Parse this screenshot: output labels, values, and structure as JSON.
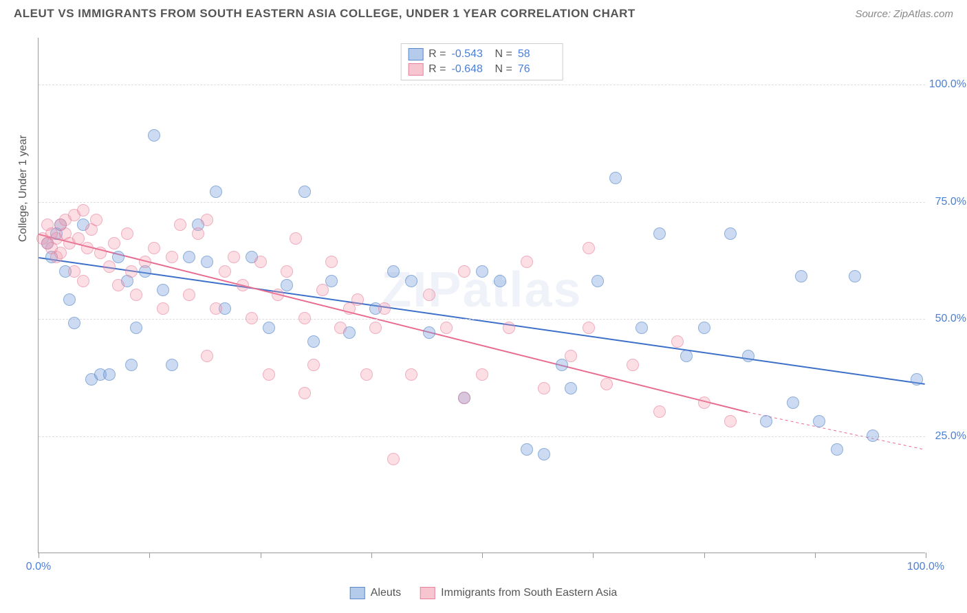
{
  "title": "ALEUT VS IMMIGRANTS FROM SOUTH EASTERN ASIA COLLEGE, UNDER 1 YEAR CORRELATION CHART",
  "source": "Source: ZipAtlas.com",
  "ylabel": "College, Under 1 year",
  "watermark": "ZIPatlas",
  "chart": {
    "type": "scatter",
    "xlim": [
      0,
      100
    ],
    "ylim": [
      0,
      110
    ],
    "yticks": [
      25,
      50,
      75,
      100
    ],
    "ytick_labels": [
      "25.0%",
      "50.0%",
      "75.0%",
      "100.0%"
    ],
    "xtick_positions": [
      0,
      12.5,
      25,
      37.5,
      50,
      62.5,
      75,
      87.5,
      100
    ],
    "xtick_labels": {
      "0": "0.0%",
      "100": "100.0%"
    },
    "background_color": "#ffffff",
    "grid_color": "#dddddd",
    "series": [
      {
        "name": "Aleuts",
        "color_fill": "rgba(120,160,220,0.52)",
        "color_border": "rgba(80,130,200,0.85)",
        "color_hex": "#7aa6dc",
        "r": -0.543,
        "n": 58,
        "marker_size": 18,
        "trend": {
          "x1": 0,
          "y1": 63,
          "x2": 100,
          "y2": 36,
          "color": "#3b6fc9",
          "width": 2
        },
        "points": [
          [
            1,
            66
          ],
          [
            1.5,
            63
          ],
          [
            2,
            68
          ],
          [
            2.5,
            70
          ],
          [
            3,
            60
          ],
          [
            3.5,
            54
          ],
          [
            4,
            49
          ],
          [
            5,
            70
          ],
          [
            6,
            37
          ],
          [
            7,
            38
          ],
          [
            8,
            38
          ],
          [
            9,
            63
          ],
          [
            10,
            58
          ],
          [
            10.5,
            40
          ],
          [
            11,
            48
          ],
          [
            12,
            60
          ],
          [
            13,
            89
          ],
          [
            14,
            56
          ],
          [
            15,
            40
          ],
          [
            17,
            63
          ],
          [
            18,
            70
          ],
          [
            19,
            62
          ],
          [
            20,
            77
          ],
          [
            21,
            52
          ],
          [
            24,
            63
          ],
          [
            26,
            48
          ],
          [
            28,
            57
          ],
          [
            30,
            77
          ],
          [
            31,
            45
          ],
          [
            33,
            58
          ],
          [
            35,
            47
          ],
          [
            38,
            52
          ],
          [
            40,
            60
          ],
          [
            42,
            58
          ],
          [
            44,
            47
          ],
          [
            48,
            33
          ],
          [
            50,
            60
          ],
          [
            52,
            58
          ],
          [
            55,
            22
          ],
          [
            57,
            21
          ],
          [
            59,
            40
          ],
          [
            60,
            35
          ],
          [
            63,
            58
          ],
          [
            65,
            80
          ],
          [
            68,
            48
          ],
          [
            70,
            68
          ],
          [
            73,
            42
          ],
          [
            75,
            48
          ],
          [
            78,
            68
          ],
          [
            80,
            42
          ],
          [
            82,
            28
          ],
          [
            85,
            32
          ],
          [
            86,
            59
          ],
          [
            88,
            28
          ],
          [
            90,
            22
          ],
          [
            92,
            59
          ],
          [
            94,
            25
          ],
          [
            99,
            37
          ]
        ]
      },
      {
        "name": "Immigrants from South Eastern Asia",
        "color_fill": "rgba(240,150,170,0.42)",
        "color_border": "rgba(230,120,150,0.75)",
        "color_hex": "#f096ab",
        "r": -0.648,
        "n": 76,
        "marker_size": 18,
        "trend": {
          "x1": 0,
          "y1": 68,
          "x2": 80,
          "y2": 30,
          "color": "#e86a8f",
          "width": 2,
          "dash_extend_to": 100,
          "dash_y_end": 22
        },
        "points": [
          [
            0.5,
            67
          ],
          [
            1,
            70
          ],
          [
            1,
            66
          ],
          [
            1.5,
            65
          ],
          [
            1.5,
            68
          ],
          [
            2,
            67
          ],
          [
            2,
            63
          ],
          [
            2.5,
            70
          ],
          [
            2.5,
            64
          ],
          [
            3,
            68
          ],
          [
            3,
            71
          ],
          [
            3.5,
            66
          ],
          [
            4,
            72
          ],
          [
            4,
            60
          ],
          [
            4.5,
            67
          ],
          [
            5,
            73
          ],
          [
            5,
            58
          ],
          [
            5.5,
            65
          ],
          [
            6,
            69
          ],
          [
            6.5,
            71
          ],
          [
            7,
            64
          ],
          [
            8,
            61
          ],
          [
            8.5,
            66
          ],
          [
            9,
            57
          ],
          [
            10,
            68
          ],
          [
            10.5,
            60
          ],
          [
            11,
            55
          ],
          [
            12,
            62
          ],
          [
            13,
            65
          ],
          [
            14,
            52
          ],
          [
            15,
            63
          ],
          [
            16,
            70
          ],
          [
            17,
            55
          ],
          [
            18,
            68
          ],
          [
            19,
            42
          ],
          [
            19,
            71
          ],
          [
            20,
            52
          ],
          [
            21,
            60
          ],
          [
            22,
            63
          ],
          [
            23,
            57
          ],
          [
            24,
            50
          ],
          [
            25,
            62
          ],
          [
            26,
            38
          ],
          [
            27,
            55
          ],
          [
            28,
            60
          ],
          [
            29,
            67
          ],
          [
            30,
            50
          ],
          [
            30,
            34
          ],
          [
            31,
            40
          ],
          [
            32,
            56
          ],
          [
            33,
            62
          ],
          [
            34,
            48
          ],
          [
            35,
            52
          ],
          [
            36,
            54
          ],
          [
            37,
            38
          ],
          [
            38,
            48
          ],
          [
            39,
            52
          ],
          [
            40,
            20
          ],
          [
            42,
            38
          ],
          [
            44,
            55
          ],
          [
            46,
            48
          ],
          [
            48,
            33
          ],
          [
            50,
            38
          ],
          [
            53,
            48
          ],
          [
            55,
            62
          ],
          [
            57,
            35
          ],
          [
            60,
            42
          ],
          [
            62,
            65
          ],
          [
            64,
            36
          ],
          [
            67,
            40
          ],
          [
            70,
            30
          ],
          [
            72,
            45
          ],
          [
            75,
            32
          ],
          [
            78,
            28
          ],
          [
            62,
            48
          ],
          [
            48,
            60
          ]
        ]
      }
    ]
  },
  "legend_top": [
    {
      "swatch": "blue",
      "r_label": "R =",
      "r": "-0.543",
      "n_label": "N =",
      "n": "58"
    },
    {
      "swatch": "pink",
      "r_label": "R =",
      "r": "-0.648",
      "n_label": "N =",
      "n": "76"
    }
  ],
  "legend_bottom": [
    {
      "swatch": "blue",
      "label": "Aleuts"
    },
    {
      "swatch": "pink",
      "label": "Immigrants from South Eastern Asia"
    }
  ]
}
